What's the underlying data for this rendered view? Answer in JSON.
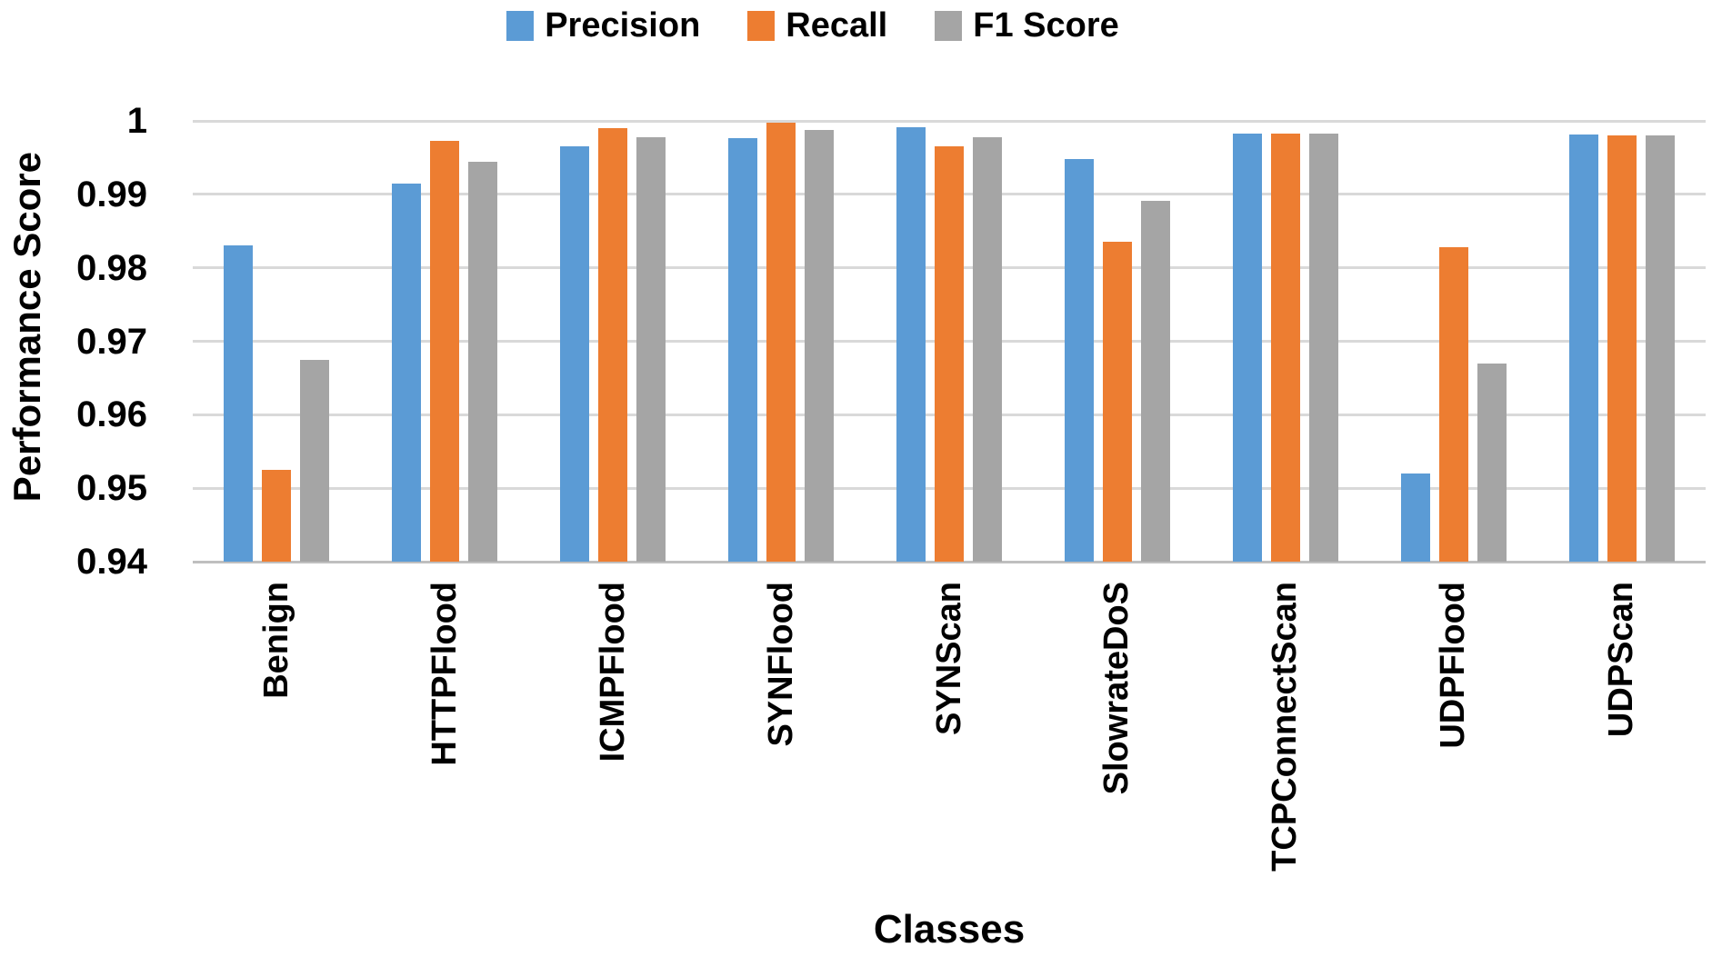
{
  "chart_data": {
    "type": "bar",
    "title": "",
    "xlabel": "Classes",
    "ylabel": "Performance Score",
    "ylim": [
      0.94,
      1.0
    ],
    "ytick_step": 0.01,
    "yticks": [
      "1",
      "0.99",
      "0.98",
      "0.97",
      "0.96",
      "0.95",
      "0.94"
    ],
    "grid": true,
    "legend_position": "top",
    "gridline_color": "#d9d9d9",
    "axis_line_color": "#bfbfbf",
    "text_color": "#000000",
    "categories": [
      "Benign",
      "HTTPFlood",
      "ICMPFlood",
      "SYNFlood",
      "SYNScan",
      "SlowrateDoS",
      "TCPConnectScan",
      "UDPFlood",
      "UDPScan"
    ],
    "series": [
      {
        "name": "Precision",
        "color": "#5B9BD5",
        "values": [
          0.983,
          0.9915,
          0.9966,
          0.9977,
          0.9991,
          0.9948,
          0.9983,
          0.952,
          0.9982
        ]
      },
      {
        "name": "Recall",
        "color": "#ED7D31",
        "values": [
          0.9525,
          0.9973,
          0.999,
          0.9998,
          0.9966,
          0.9835,
          0.9983,
          0.9828,
          0.998
        ]
      },
      {
        "name": "F1 Score",
        "color": "#A5A5A5",
        "values": [
          0.9675,
          0.9944,
          0.9978,
          0.9988,
          0.9978,
          0.9891,
          0.9983,
          0.967,
          0.998
        ]
      }
    ]
  }
}
